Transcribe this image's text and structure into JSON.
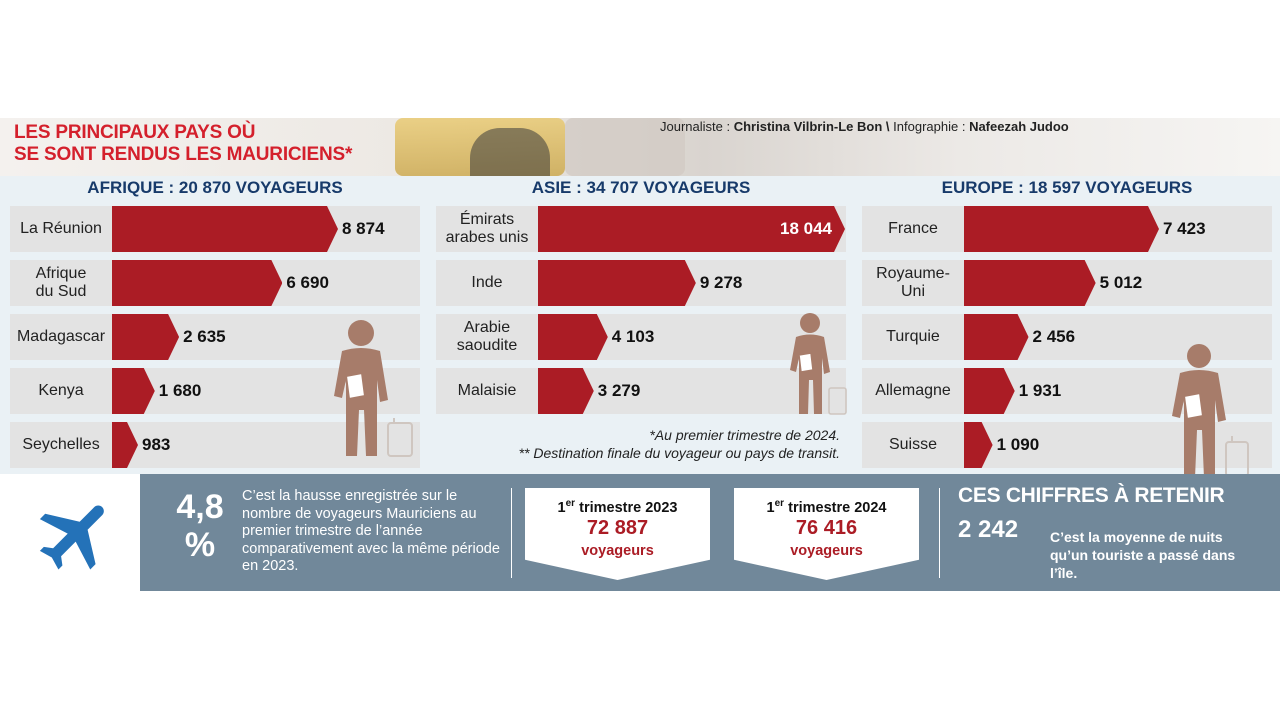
{
  "header": {
    "title_line1": "LES PRINCIPAUX PAYS OÙ",
    "title_line2": "SE SONT RENDUS LES MAURICIENS*",
    "credit_journalist_label": "Journaliste :",
    "credit_journalist": "Christina Vilbrin-Le Bon",
    "credit_separator": "\\",
    "credit_infographic_label": "Infographie :",
    "credit_infographic": "Nafeezah Judoo"
  },
  "colors": {
    "bar": "#ab1c25",
    "title_red": "#d4202c",
    "region_blue": "#173a6a",
    "band": "#71889a",
    "person": "#a77c6a",
    "plane": "#2472b8"
  },
  "icons": [
    "person-with-luggage-icon",
    "airplane-icon"
  ],
  "chart_data": [
    {
      "type": "bar",
      "title": "AFRIQUE : 20 870 VOYAGEURS",
      "categories": [
        "La Réunion",
        "Afrique\ndu Sud",
        "Madagascar",
        "Kenya",
        "Seychelles"
      ],
      "values": [
        8874,
        6690,
        2635,
        1680,
        983
      ],
      "value_labels": [
        "8 874",
        "6 690",
        "2 635",
        "1 680",
        "983"
      ]
    },
    {
      "type": "bar",
      "title": "ASIE : 34 707 VOYAGEURS",
      "categories": [
        "Émirats\narabes unis",
        "Inde",
        "Arabie\nsaoudite",
        "Malaisie"
      ],
      "values": [
        18044,
        9278,
        4103,
        3279
      ],
      "value_labels": [
        "18 044",
        "9 278",
        "4 103",
        "3 279"
      ]
    },
    {
      "type": "bar",
      "title": "EUROPE : 18 597 VOYAGEURS",
      "categories": [
        "France",
        "Royaume-\nUni",
        "Turquie",
        "Allemagne",
        "Suisse"
      ],
      "values": [
        7423,
        5012,
        2456,
        1931,
        1090
      ],
      "value_labels": [
        "7 423",
        "5 012",
        "2 456",
        "1 931",
        "1 090"
      ]
    }
  ],
  "footnotes": {
    "line1": "*Au premier trimestre de 2024.",
    "line2": "** Destination finale du voyageur ou pays de transit."
  },
  "stats": {
    "increase_value": "4,8",
    "increase_unit": "%",
    "increase_text": "C’est la hausse enregistrée sur le nombre de voyageurs Mauriciens au premier trimestre de l’année comparativement avec la même période en 2023.",
    "q2023_ordinal": "1",
    "q2023_sup": "er",
    "q2023_title": "trimestre 2023",
    "q2023_value": "72 887",
    "q2023_unit": "voyageurs",
    "q2024_ordinal": "1",
    "q2024_sup": "er",
    "q2024_title": "trimestre 2024",
    "q2024_value": "76 416",
    "q2024_unit": "voyageurs"
  },
  "retain": {
    "title": "CES CHIFFRES À RETENIR",
    "number": "2 242",
    "text": "C’est la moyenne de nuits qu’un touriste a passé dans l’île."
  }
}
